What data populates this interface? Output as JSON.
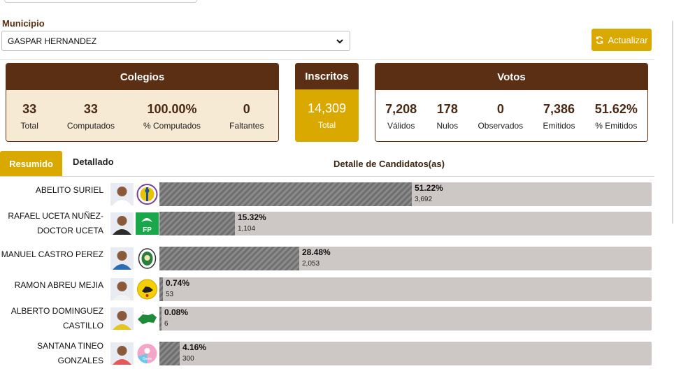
{
  "filters": {
    "municipio_label": "Municipio",
    "municipio_value": "GASPAR HERNANDEZ",
    "actualizar_label": "Actualizar"
  },
  "colegios": {
    "title": "Colegios",
    "stats": [
      {
        "value": "33",
        "label": "Total"
      },
      {
        "value": "33",
        "label": "Computados"
      },
      {
        "value": "100.00%",
        "label": "% Computados"
      },
      {
        "value": "0",
        "label": "Faltantes"
      }
    ]
  },
  "inscritos": {
    "title": "Inscritos",
    "value": "14,309",
    "label": "Total"
  },
  "votos": {
    "title": "Votos",
    "stats": [
      {
        "value": "7,208",
        "label": "Válidos"
      },
      {
        "value": "178",
        "label": "Nulos"
      },
      {
        "value": "0",
        "label": "Observados"
      },
      {
        "value": "7,386",
        "label": "Emitidos"
      },
      {
        "value": "51.62%",
        "label": "% Emitidos"
      }
    ]
  },
  "tabs": {
    "resumen": "Resumido",
    "detallado": "Detallado",
    "detail_title": "Detalle de Candidatos(as)"
  },
  "candidates": [
    {
      "name_lines": [
        "ABELITO SURIEL"
      ],
      "percent": "51.22%",
      "share": 51.22,
      "votes": "3,692",
      "photo_bg": "#e8ecf2",
      "shirt": "#ffffff",
      "logo": "pld-icon"
    },
    {
      "name_lines": [
        "RAFAEL UCETA NUÑEZ-",
        "DOCTOR UCETA"
      ],
      "percent": "15.32%",
      "share": 15.32,
      "votes": "1,104",
      "photo_bg": "#e8ecf2",
      "shirt": "#2c2c2c",
      "logo": "fp-icon"
    },
    {
      "name_lines": [
        "MANUEL CASTRO PEREZ"
      ],
      "percent": "28.48%",
      "share": 28.48,
      "votes": "2,053",
      "photo_bg": "#e8ecf2",
      "shirt": "#2a6db5",
      "logo": "prm-icon"
    },
    {
      "name_lines": [
        "RAMON ABREU MEJIA"
      ],
      "percent": "0.74%",
      "share": 0.74,
      "votes": "53",
      "photo_bg": "#e8ecf2",
      "shirt": "#f2f2f2",
      "logo": "prd-icon"
    },
    {
      "name_lines": [
        "ALBERTO DOMINGUEZ",
        "CASTILLO"
      ],
      "percent": "0.08%",
      "share": 0.08,
      "votes": "6",
      "photo_bg": "#e8ecf2",
      "shirt": "#e7c520",
      "logo": "map-party-icon"
    },
    {
      "name_lines": [
        "SANTANA TINEO",
        "GONZALES"
      ],
      "percent": "4.16%",
      "share": 4.16,
      "votes": "300",
      "photo_bg": "#e8ecf2",
      "shirt": "#e35a5a",
      "logo": "gente-icon"
    }
  ],
  "logo_text": {
    "fp-icon": "FP",
    "gente-icon": "Gente"
  }
}
